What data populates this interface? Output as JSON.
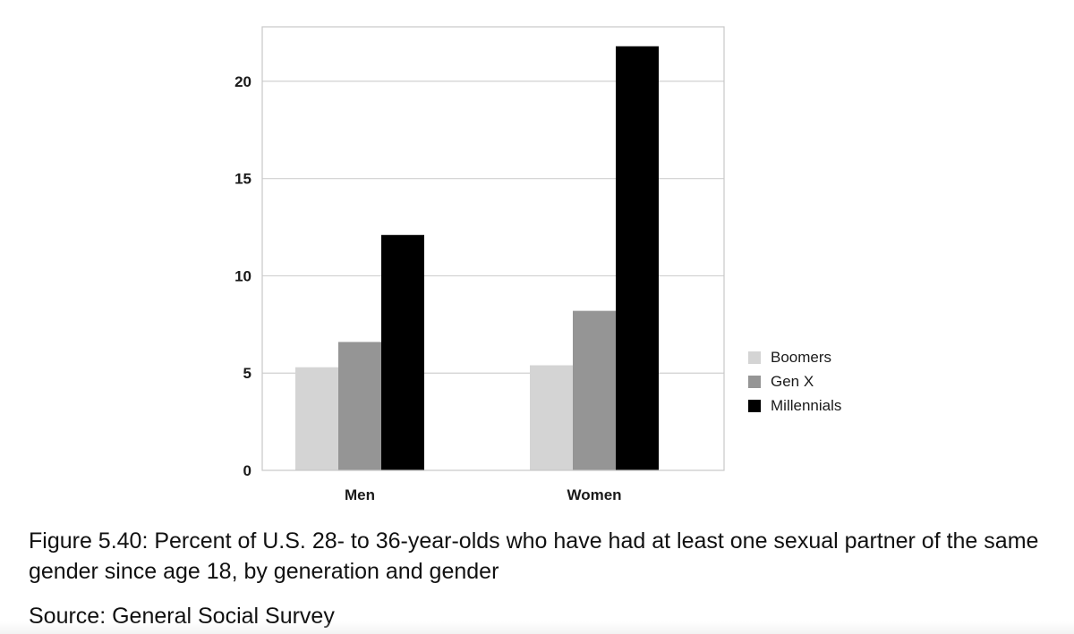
{
  "chart_data": {
    "type": "bar",
    "categories": [
      "Men",
      "Women"
    ],
    "series": [
      {
        "name": "Boomers",
        "values": [
          5.3,
          5.4
        ]
      },
      {
        "name": "Gen X",
        "values": [
          6.6,
          8.2
        ]
      },
      {
        "name": "Millennials",
        "values": [
          12.1,
          21.8
        ]
      }
    ],
    "colors": [
      "#d4d4d4",
      "#959595",
      "#000000"
    ],
    "yticks": [
      "0",
      "5",
      "10",
      "15",
      "20"
    ],
    "ylim": [
      0,
      22.8
    ],
    "grid": true,
    "legend_position": "right"
  },
  "caption": {
    "text": "Figure 5.40: Percent of U.S. 28- to 36-year-olds who have had at least one sexual partner of the same gender since age 18, by generation and gender",
    "source": "Source: General Social Survey"
  }
}
